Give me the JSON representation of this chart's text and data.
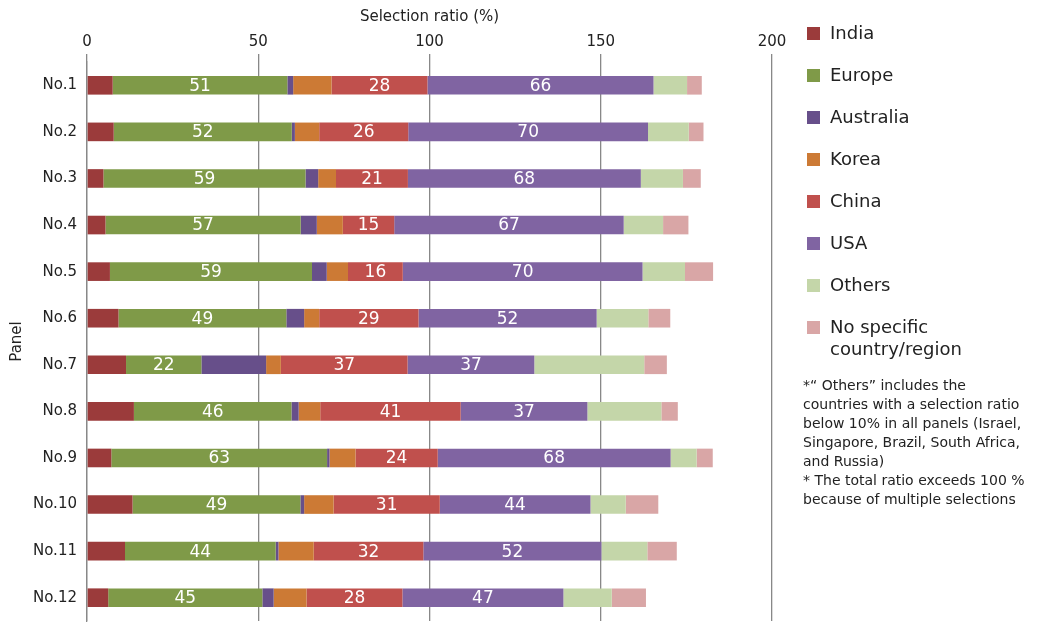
{
  "chart_data": {
    "type": "bar",
    "orientation": "horizontal",
    "stacked": true,
    "xlabel": "Selection ratio (%)",
    "ylabel": "Panel",
    "xlim": [
      0,
      200
    ],
    "xticks": [
      0,
      50,
      100,
      150,
      200
    ],
    "grid": "x",
    "legend": "right",
    "categories": [
      "No.1",
      "No.2",
      "No.3",
      "No.4",
      "No.5",
      "No.6",
      "No.7",
      "No.8",
      "No.9",
      "No.10",
      "No.11",
      "No.12"
    ],
    "series": [
      {
        "name": "India",
        "color": "#9b3b3b",
        "values": [
          7.5,
          7.8,
          4.8,
          5.4,
          6.7,
          9.2,
          11.4,
          13.7,
          7.1,
          13.3,
          11.1,
          6.2
        ]
      },
      {
        "name": "Europe",
        "color": "#7f9a48",
        "values": [
          51,
          52,
          59,
          57,
          59,
          49,
          22,
          46,
          63,
          49,
          44,
          45
        ],
        "value_labels": [
          "51",
          "52",
          "59",
          "57",
          "59",
          "49",
          "22",
          "46",
          "63",
          "49",
          "44",
          "45"
        ]
      },
      {
        "name": "Australia",
        "color": "#674f8a",
        "values": [
          1.7,
          0.9,
          3.7,
          4.7,
          4.3,
          5.2,
          18.9,
          2.1,
          0.7,
          1.1,
          0.8,
          3.3
        ]
      },
      {
        "name": "Korea",
        "color": "#cc7a35",
        "values": [
          11.2,
          7.1,
          5.2,
          7.6,
          6.2,
          4.4,
          4.3,
          6.3,
          7.6,
          8.6,
          10.3,
          9.6
        ]
      },
      {
        "name": "China",
        "color": "#c0504d",
        "values": [
          28,
          26,
          21,
          15,
          16,
          29,
          37,
          41,
          24,
          31,
          32,
          28
        ],
        "value_labels": [
          "28",
          "26",
          "21",
          "15",
          "16",
          "29",
          "37",
          "41",
          "24",
          "31",
          "32",
          "28"
        ]
      },
      {
        "name": "USA",
        "color": "#8064a2",
        "values": [
          66,
          70,
          68,
          67,
          70,
          52,
          37,
          37,
          68,
          44,
          52,
          47
        ],
        "value_labels": [
          "66",
          "70",
          "68",
          "67",
          "70",
          "52",
          "37",
          "37",
          "68",
          "44",
          "52",
          "47"
        ]
      },
      {
        "name": "Others",
        "color": "#c4d6a9",
        "values": [
          9.8,
          11.9,
          12.3,
          11.5,
          12.4,
          15.1,
          32.1,
          21.6,
          7.6,
          10.3,
          13.4,
          14.1
        ]
      },
      {
        "name": "No specific country/region",
        "color": "#d9a6a6",
        "values": [
          4.3,
          4.3,
          5.2,
          7.4,
          8.2,
          6.4,
          6.6,
          4.8,
          4.7,
          9.5,
          8.6,
          10
        ]
      }
    ],
    "annotations": [
      "*“ Others” includes the countries with a selection ratio below 10% in all panels (Israel, Singapore, Brazil, South Africa, and Russia)",
      "* The total ratio exceeds 100 % because of multiple selections"
    ]
  }
}
